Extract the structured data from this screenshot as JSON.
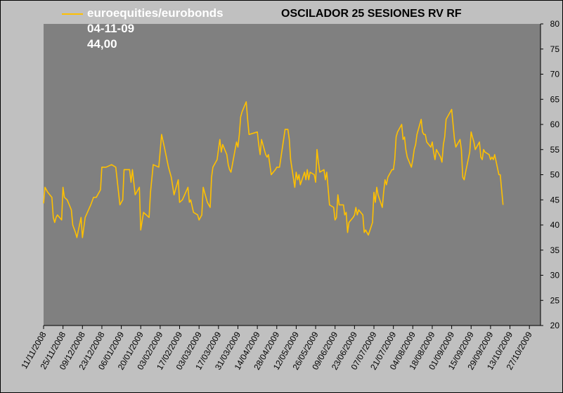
{
  "chart_data": {
    "type": "line",
    "title": "OSCILADOR 25 SESIONES RV RF",
    "legend": {
      "series_name": "euroequities/eurobonds",
      "date": "04-11-09",
      "value": "44,00",
      "placement": "top-left"
    },
    "xlabel": "",
    "ylabel": "",
    "ylim": [
      20,
      80
    ],
    "y_ticks": [
      20,
      25,
      30,
      35,
      40,
      45,
      50,
      55,
      60,
      65,
      70,
      75,
      80
    ],
    "y_axis_side": "right",
    "grid": false,
    "x_range": [
      "11/11/2008",
      "04/11/2009"
    ],
    "x_tick_labels": [
      "11/11/2008",
      "25/11/2008",
      "09/12/2008",
      "23/12/2008",
      "06/01/2009",
      "20/01/2009",
      "03/02/2009",
      "17/02/2009",
      "03/03/2009",
      "17/03/2009",
      "31/03/2009",
      "14/04/2009",
      "28/04/2009",
      "12/05/2009",
      "26/05/2009",
      "09/06/2009",
      "23/06/2009",
      "07/07/2009",
      "21/07/2009",
      "04/08/2009",
      "18/08/2009",
      "01/09/2009",
      "15/09/2009",
      "29/09/2009",
      "13/10/2009",
      "27/10/2009"
    ],
    "colors": {
      "series": "#ffc000",
      "plot_background": "#808080",
      "page_background": "#c0c0c0"
    },
    "series": [
      {
        "name": "euroequities/eurobonds",
        "points": [
          [
            "11/11/2008",
            44.3
          ],
          [
            "12/11/2008",
            47.5
          ],
          [
            "14/11/2008",
            46.5
          ],
          [
            "17/11/2008",
            45.5
          ],
          [
            "18/11/2008",
            41.5
          ],
          [
            "19/11/2008",
            40.5
          ],
          [
            "20/11/2008",
            41.5
          ],
          [
            "21/11/2008",
            42.0
          ],
          [
            "24/11/2008",
            41.0
          ],
          [
            "25/11/2008",
            47.5
          ],
          [
            "26/11/2008",
            45.5
          ],
          [
            "28/11/2008",
            45.0
          ],
          [
            "01/12/2008",
            43.0
          ],
          [
            "02/12/2008",
            40.0
          ],
          [
            "04/12/2008",
            38.5
          ],
          [
            "05/12/2008",
            37.5
          ],
          [
            "08/12/2008",
            41.5
          ],
          [
            "09/12/2008",
            37.5
          ],
          [
            "11/12/2008",
            41.5
          ],
          [
            "15/12/2008",
            44.0
          ],
          [
            "17/12/2008",
            45.5
          ],
          [
            "19/12/2008",
            45.5
          ],
          [
            "22/12/2008",
            47.0
          ],
          [
            "23/12/2008",
            51.5
          ],
          [
            "26/12/2008",
            51.5
          ],
          [
            "30/12/2008",
            52.0
          ],
          [
            "02/01/2009",
            51.5
          ],
          [
            "05/01/2009",
            44.0
          ],
          [
            "06/01/2009",
            44.5
          ],
          [
            "07/01/2009",
            45.0
          ],
          [
            "08/01/2009",
            51.0
          ],
          [
            "12/01/2009",
            51.0
          ],
          [
            "13/01/2009",
            48.5
          ],
          [
            "14/01/2009",
            51.0
          ],
          [
            "16/01/2009",
            46.0
          ],
          [
            "19/01/2009",
            47.5
          ],
          [
            "20/01/2009",
            39.0
          ],
          [
            "22/01/2009",
            42.5
          ],
          [
            "26/01/2009",
            41.5
          ],
          [
            "27/01/2009",
            46.5
          ],
          [
            "29/01/2009",
            52.0
          ],
          [
            "02/02/2009",
            51.5
          ],
          [
            "04/02/2009",
            58.0
          ],
          [
            "06/02/2009",
            55.5
          ],
          [
            "09/02/2009",
            51.5
          ],
          [
            "11/02/2009",
            49.5
          ],
          [
            "13/02/2009",
            46.0
          ],
          [
            "16/02/2009",
            49.0
          ],
          [
            "17/02/2009",
            44.5
          ],
          [
            "19/02/2009",
            45.0
          ],
          [
            "23/02/2009",
            47.5
          ],
          [
            "24/02/2009",
            44.5
          ],
          [
            "25/02/2009",
            45.0
          ],
          [
            "27/02/2009",
            42.5
          ],
          [
            "02/03/2009",
            42.0
          ],
          [
            "03/03/2009",
            41.0
          ],
          [
            "05/03/2009",
            42.0
          ],
          [
            "06/03/2009",
            47.5
          ],
          [
            "09/03/2009",
            44.5
          ],
          [
            "11/03/2009",
            43.5
          ],
          [
            "12/03/2009",
            49.5
          ],
          [
            "13/03/2009",
            51.5
          ],
          [
            "16/03/2009",
            53.0
          ],
          [
            "17/03/2009",
            55.0
          ],
          [
            "18/03/2009",
            57.0
          ],
          [
            "19/03/2009",
            54.5
          ],
          [
            "20/03/2009",
            56.0
          ],
          [
            "23/03/2009",
            54.0
          ],
          [
            "24/03/2009",
            52.0
          ],
          [
            "25/03/2009",
            51.0
          ],
          [
            "26/03/2009",
            50.5
          ],
          [
            "27/03/2009",
            52.0
          ],
          [
            "30/03/2009",
            56.5
          ],
          [
            "31/03/2009",
            55.5
          ],
          [
            "01/04/2009",
            58.0
          ],
          [
            "02/04/2009",
            61.5
          ],
          [
            "03/04/2009",
            62.5
          ],
          [
            "06/04/2009",
            64.5
          ],
          [
            "07/04/2009",
            61.0
          ],
          [
            "08/04/2009",
            58.0
          ],
          [
            "14/04/2009",
            58.5
          ],
          [
            "15/04/2009",
            56.0
          ],
          [
            "16/04/2009",
            54.0
          ],
          [
            "17/04/2009",
            57.0
          ],
          [
            "20/04/2009",
            54.0
          ],
          [
            "21/04/2009",
            53.5
          ],
          [
            "22/04/2009",
            54.0
          ],
          [
            "23/04/2009",
            52.0
          ],
          [
            "24/04/2009",
            50.0
          ],
          [
            "27/04/2009",
            51.0
          ],
          [
            "28/04/2009",
            51.5
          ],
          [
            "30/04/2009",
            51.5
          ],
          [
            "04/05/2009",
            59.0
          ],
          [
            "06/05/2009",
            59.0
          ],
          [
            "07/05/2009",
            57.0
          ],
          [
            "08/05/2009",
            53.0
          ],
          [
            "11/05/2009",
            47.5
          ],
          [
            "12/05/2009",
            50.5
          ],
          [
            "13/05/2009",
            49.0
          ],
          [
            "14/05/2009",
            50.0
          ],
          [
            "15/05/2009",
            48.0
          ],
          [
            "18/05/2009",
            50.5
          ],
          [
            "19/05/2009",
            49.0
          ],
          [
            "20/05/2009",
            51.0
          ],
          [
            "21/05/2009",
            49.0
          ],
          [
            "22/05/2009",
            50.5
          ],
          [
            "25/05/2009",
            50.0
          ],
          [
            "26/05/2009",
            48.5
          ],
          [
            "27/05/2009",
            55.0
          ],
          [
            "28/05/2009",
            52.5
          ],
          [
            "29/05/2009",
            50.5
          ],
          [
            "01/06/2009",
            51.0
          ],
          [
            "02/06/2009",
            49.0
          ],
          [
            "03/06/2009",
            50.5
          ],
          [
            "05/06/2009",
            44.0
          ],
          [
            "08/06/2009",
            43.5
          ],
          [
            "09/06/2009",
            41.0
          ],
          [
            "10/06/2009",
            41.5
          ],
          [
            "11/06/2009",
            46.0
          ],
          [
            "12/06/2009",
            44.0
          ],
          [
            "15/06/2009",
            44.0
          ],
          [
            "16/06/2009",
            42.0
          ],
          [
            "17/06/2009",
            42.5
          ],
          [
            "18/06/2009",
            38.5
          ],
          [
            "19/06/2009",
            40.5
          ],
          [
            "22/06/2009",
            41.5
          ],
          [
            "23/06/2009",
            42.0
          ],
          [
            "24/06/2009",
            43.5
          ],
          [
            "25/06/2009",
            42.0
          ],
          [
            "26/06/2009",
            43.0
          ],
          [
            "29/06/2009",
            42.0
          ],
          [
            "30/06/2009",
            38.5
          ],
          [
            "01/07/2009",
            39.0
          ],
          [
            "02/07/2009",
            38.5
          ],
          [
            "03/07/2009",
            38.0
          ],
          [
            "06/07/2009",
            40.5
          ],
          [
            "07/07/2009",
            46.5
          ],
          [
            "08/07/2009",
            44.5
          ],
          [
            "09/07/2009",
            47.5
          ],
          [
            "10/07/2009",
            46.0
          ],
          [
            "13/07/2009",
            43.5
          ],
          [
            "14/07/2009",
            46.5
          ],
          [
            "15/07/2009",
            49.0
          ],
          [
            "16/07/2009",
            48.0
          ],
          [
            "17/07/2009",
            49.5
          ],
          [
            "20/07/2009",
            51.0
          ],
          [
            "21/07/2009",
            51.0
          ],
          [
            "22/07/2009",
            53.0
          ],
          [
            "23/07/2009",
            57.5
          ],
          [
            "24/07/2009",
            58.5
          ],
          [
            "27/07/2009",
            60.0
          ],
          [
            "28/07/2009",
            57.0
          ],
          [
            "29/07/2009",
            57.5
          ],
          [
            "30/07/2009",
            55.0
          ],
          [
            "31/07/2009",
            53.5
          ],
          [
            "03/08/2009",
            51.5
          ],
          [
            "04/08/2009",
            53.0
          ],
          [
            "05/08/2009",
            55.0
          ],
          [
            "06/08/2009",
            56.0
          ],
          [
            "07/08/2009",
            58.0
          ],
          [
            "10/08/2009",
            61.0
          ],
          [
            "11/08/2009",
            58.5
          ],
          [
            "12/08/2009",
            58.0
          ],
          [
            "13/08/2009",
            58.0
          ],
          [
            "14/08/2009",
            56.5
          ],
          [
            "17/08/2009",
            55.5
          ],
          [
            "18/08/2009",
            56.5
          ],
          [
            "19/08/2009",
            54.5
          ],
          [
            "20/08/2009",
            53.0
          ],
          [
            "21/08/2009",
            55.0
          ],
          [
            "24/08/2009",
            53.5
          ],
          [
            "25/08/2009",
            52.5
          ],
          [
            "26/08/2009",
            56.0
          ],
          [
            "27/08/2009",
            57.5
          ],
          [
            "28/08/2009",
            61.0
          ],
          [
            "31/08/2009",
            62.5
          ],
          [
            "01/09/2009",
            63.0
          ],
          [
            "02/09/2009",
            60.0
          ],
          [
            "03/09/2009",
            57.0
          ],
          [
            "04/09/2009",
            55.5
          ],
          [
            "07/09/2009",
            57.0
          ],
          [
            "08/09/2009",
            55.0
          ],
          [
            "09/09/2009",
            49.5
          ],
          [
            "10/09/2009",
            49.0
          ],
          [
            "11/09/2009",
            50.5
          ],
          [
            "14/09/2009",
            54.5
          ],
          [
            "15/09/2009",
            58.5
          ],
          [
            "16/09/2009",
            57.5
          ],
          [
            "17/09/2009",
            56.5
          ],
          [
            "18/09/2009",
            55.0
          ],
          [
            "21/09/2009",
            56.5
          ],
          [
            "22/09/2009",
            53.5
          ],
          [
            "23/09/2009",
            53.0
          ],
          [
            "24/09/2009",
            55.0
          ],
          [
            "25/09/2009",
            54.5
          ],
          [
            "28/09/2009",
            54.0
          ],
          [
            "29/09/2009",
            53.0
          ],
          [
            "30/09/2009",
            53.5
          ],
          [
            "01/10/2009",
            53.0
          ],
          [
            "02/10/2009",
            54.0
          ],
          [
            "05/10/2009",
            50.0
          ],
          [
            "06/10/2009",
            50.0
          ],
          [
            "07/10/2009",
            47.0
          ],
          [
            "08/10/2009",
            44.0
          ]
        ]
      }
    ]
  }
}
